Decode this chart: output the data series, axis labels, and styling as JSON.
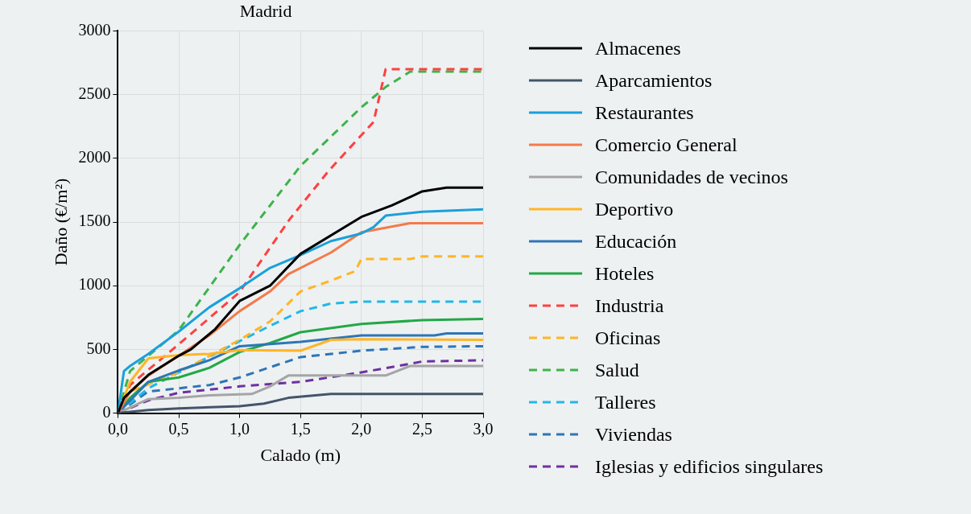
{
  "chart_data": {
    "type": "line",
    "title": "Madrid",
    "xlabel": "Calado (m)",
    "ylabel": "Daño (€/m²)",
    "xlim": [
      0,
      3
    ],
    "xticks": [
      {
        "value": 0,
        "label": "0,0"
      },
      {
        "value": 0.5,
        "label": "0,5"
      },
      {
        "value": 1,
        "label": "1,0"
      },
      {
        "value": 1.5,
        "label": "1,5"
      },
      {
        "value": 2,
        "label": "2,0"
      },
      {
        "value": 2.5,
        "label": "2,5"
      },
      {
        "value": 3,
        "label": "3,0"
      }
    ],
    "ylim": [
      0,
      3000
    ],
    "yticks": [
      0,
      500,
      1000,
      1500,
      2000,
      2500,
      3000
    ],
    "grid": true,
    "legend": "right",
    "marker": "none",
    "series": [
      {
        "name": "Almacenes",
        "color": "#000000",
        "line_style": "solid",
        "x": [
          0,
          0.05,
          0.25,
          0.5,
          0.6,
          0.8,
          1.0,
          1.25,
          1.5,
          2.0,
          2.25,
          2.5,
          2.7,
          3.0
        ],
        "values": [
          0,
          120,
          300,
          450,
          500,
          660,
          880,
          1000,
          1250,
          1540,
          1630,
          1740,
          1770,
          1770
        ]
      },
      {
        "name": "Aparcamientos",
        "color": "#44546a",
        "line_style": "solid",
        "x": [
          0,
          0.25,
          0.5,
          1.0,
          1.2,
          1.4,
          1.75,
          3.0
        ],
        "values": [
          0,
          25,
          37,
          55,
          75,
          120,
          150,
          150
        ]
      },
      {
        "name": "Restaurantes",
        "color": "#1aa0db",
        "line_style": "solid",
        "x": [
          0,
          0.05,
          0.1,
          0.25,
          0.5,
          0.75,
          1.0,
          1.25,
          1.5,
          1.75,
          2.0,
          2.1,
          2.2,
          2.5,
          3.0
        ],
        "values": [
          0,
          330,
          370,
          465,
          640,
          830,
          980,
          1140,
          1240,
          1350,
          1410,
          1460,
          1550,
          1580,
          1600
        ]
      },
      {
        "name": "Comercio General",
        "color": "#f47a4a",
        "line_style": "solid",
        "x": [
          0,
          0.1,
          0.25,
          0.5,
          0.75,
          1.0,
          1.25,
          1.4,
          1.75,
          2.0,
          2.4,
          3.0
        ],
        "values": [
          0,
          170,
          295,
          450,
          610,
          800,
          955,
          1090,
          1260,
          1420,
          1490,
          1490
        ]
      },
      {
        "name": "Comunidades de vecinos",
        "color": "#a5a5a5",
        "line_style": "solid",
        "x": [
          0,
          0.25,
          0.5,
          0.75,
          1.1,
          1.25,
          1.4,
          2.2,
          2.4,
          3.0
        ],
        "values": [
          0,
          110,
          120,
          140,
          150,
          210,
          295,
          295,
          370,
          370
        ]
      },
      {
        "name": "Deportivo",
        "color": "#ffb525",
        "line_style": "solid",
        "x": [
          0,
          0.1,
          0.25,
          0.5,
          0.75,
          1.0,
          1.5,
          1.75,
          2.0,
          3.0
        ],
        "values": [
          0,
          245,
          430,
          455,
          465,
          495,
          490,
          575,
          580,
          575
        ]
      },
      {
        "name": "Educación",
        "color": "#2e75b6",
        "line_style": "solid",
        "x": [
          0,
          0.25,
          0.5,
          0.75,
          1.0,
          1.5,
          2.0,
          2.6,
          2.7,
          3.0
        ],
        "values": [
          0,
          245,
          335,
          415,
          525,
          560,
          610,
          610,
          625,
          625
        ]
      },
      {
        "name": "Hoteles",
        "color": "#22a847",
        "line_style": "solid",
        "x": [
          0,
          0.1,
          0.25,
          0.5,
          0.75,
          1.0,
          1.25,
          1.5,
          2.0,
          2.5,
          3.0
        ],
        "values": [
          0,
          120,
          245,
          280,
          355,
          480,
          550,
          635,
          700,
          730,
          740
        ]
      },
      {
        "name": "Industria",
        "color": "#ff4040",
        "line_style": "dashed",
        "x": [
          0,
          0.1,
          0.5,
          1.0,
          1.41,
          1.73,
          2.1,
          2.2,
          3.0
        ],
        "values": [
          0,
          220,
          540,
          950,
          1520,
          1900,
          2285,
          2700,
          2700
        ]
      },
      {
        "name": "Oficinas",
        "color": "#ffb525",
        "line_style": "dashed",
        "x": [
          0,
          0.1,
          0.5,
          1.0,
          1.25,
          1.5,
          1.75,
          1.95,
          2.0,
          2.4,
          2.5,
          3.0
        ],
        "values": [
          0,
          170,
          320,
          575,
          720,
          955,
          1040,
          1115,
          1210,
          1210,
          1230,
          1230
        ]
      },
      {
        "name": "Salud",
        "color": "#3cb44b",
        "line_style": "dashed",
        "x": [
          0,
          0.1,
          0.25,
          0.5,
          1.0,
          1.5,
          2.0,
          2.2,
          2.4,
          3.0
        ],
        "values": [
          0,
          330,
          450,
          650,
          1320,
          1940,
          2400,
          2560,
          2680,
          2680
        ]
      },
      {
        "name": "Talleres",
        "color": "#20b8e8",
        "line_style": "dashed",
        "x": [
          0,
          0.25,
          0.5,
          1.0,
          1.25,
          1.5,
          1.75,
          2.0,
          3.0
        ],
        "values": [
          0,
          195,
          320,
          565,
          685,
          800,
          860,
          875,
          875
        ]
      },
      {
        "name": "Viviendas",
        "color": "#2e75b6",
        "line_style": "dashed",
        "x": [
          0,
          0.25,
          0.5,
          0.75,
          1.0,
          1.5,
          2.0,
          2.5,
          3.0
        ],
        "values": [
          0,
          170,
          195,
          220,
          280,
          440,
          490,
          520,
          525
        ]
      },
      {
        "name": "Iglesias y edificios singulares",
        "color": "#7030a0",
        "line_style": "dashed",
        "x": [
          0,
          0.25,
          0.5,
          1.0,
          1.5,
          2.0,
          2.3,
          2.5,
          3.0
        ],
        "values": [
          0,
          100,
          160,
          210,
          245,
          320,
          370,
          405,
          415
        ]
      }
    ]
  }
}
